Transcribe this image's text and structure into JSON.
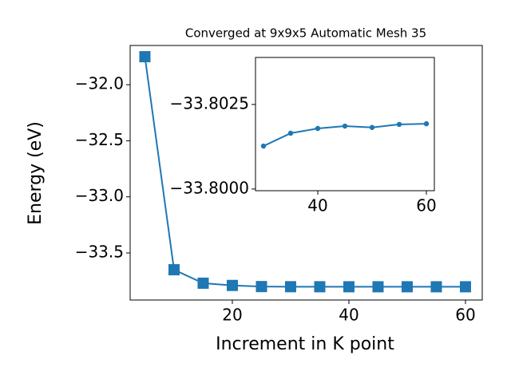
{
  "chart_data": [
    {
      "type": "line",
      "title": "Converged at 9x9x5 Automatic Mesh 35",
      "xlabel": "Increment in K point",
      "ylabel": "Energy (eV)",
      "x": [
        5,
        10,
        15,
        20,
        25,
        30,
        35,
        40,
        45,
        50,
        55,
        60
      ],
      "series": [
        {
          "name": "Energy",
          "color": "#1f77b4",
          "marker": "square",
          "values": [
            -31.75,
            -33.65,
            -33.77,
            -33.79,
            -33.8,
            -33.80127,
            -33.80165,
            -33.80179,
            -33.80186,
            -33.80182,
            -33.80191,
            -33.80193
          ]
        }
      ],
      "xlim": [
        2.47,
        62.88
      ],
      "xticks": [
        20,
        40,
        60
      ],
      "ylim": [
        -33.92,
        -31.65
      ],
      "yticks": [
        {
          "value": -32.0,
          "label": "−32.0"
        },
        {
          "value": -32.5,
          "label": "−32.5"
        },
        {
          "value": -33.0,
          "label": "−33.0"
        },
        {
          "value": -33.5,
          "label": "−33.5"
        }
      ]
    },
    {
      "type": "line",
      "x": [
        30,
        35,
        40,
        45,
        50,
        55,
        60
      ],
      "series": [
        {
          "name": "Energy",
          "color": "#1f77b4",
          "marker": "circle",
          "values": [
            -33.80127,
            -33.80165,
            -33.80179,
            -33.80186,
            -33.80182,
            -33.80191,
            -33.80193
          ]
        }
      ],
      "xlim": [
        28.53,
        61.47
      ],
      "xticks": [
        40,
        60
      ],
      "ylim": [
        -33.79995,
        -33.80389
      ],
      "yticks": [
        {
          "value": -33.8025,
          "label": "−33.8025"
        },
        {
          "value": -33.8,
          "label": "−33.8000"
        }
      ]
    }
  ]
}
